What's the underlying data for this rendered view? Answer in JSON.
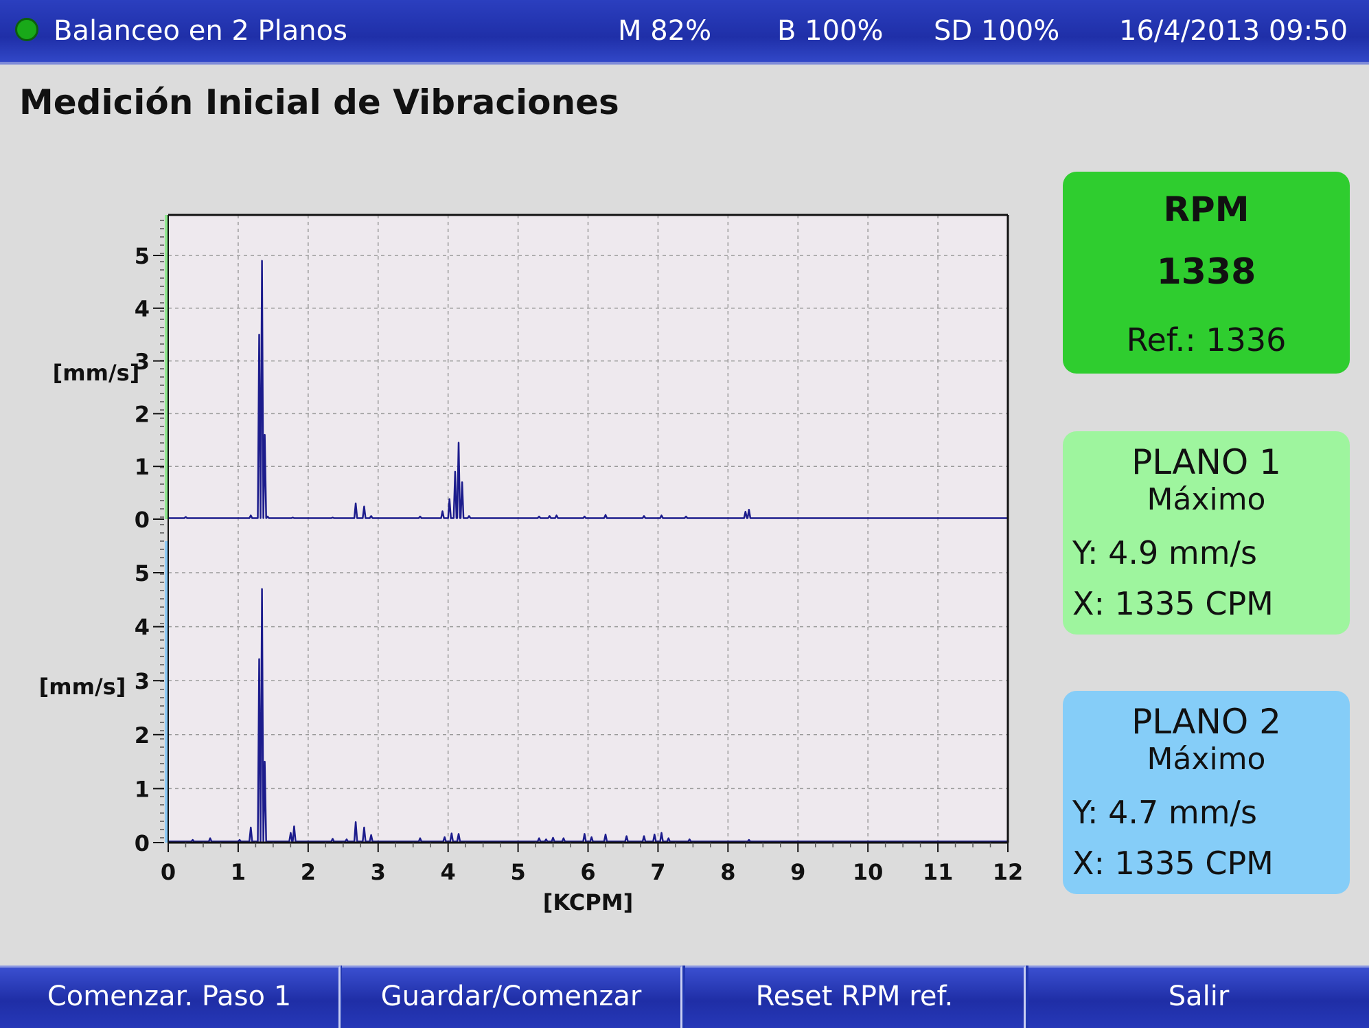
{
  "header": {
    "title": "Balanceo en 2 Planos",
    "memory": "M 82%",
    "battery": "B 100%",
    "sd": "SD 100%",
    "datetime": "16/4/2013 09:50",
    "status_color": "#19a919"
  },
  "page": {
    "title": "Medición Inicial de Vibraciones"
  },
  "rpm": {
    "label": "RPM",
    "value": "1338",
    "ref": "Ref.: 1336"
  },
  "plano1": {
    "title": "PLANO 1",
    "subtitle": "Máximo",
    "y": "Y: 4.9 mm/s",
    "x": "X: 1335 CPM",
    "color": "#9ef59e"
  },
  "plano2": {
    "title": "PLANO 2",
    "subtitle": "Máximo",
    "y": "Y: 4.7 mm/s",
    "x": "X: 1335 CPM",
    "color": "#85cdf8"
  },
  "buttons": {
    "start_step1": "Comenzar. Paso 1",
    "save_start": "Guardar/Comenzar",
    "reset_rpm": "Reset RPM ref.",
    "exit": "Salir"
  },
  "chart_data": {
    "type": "line",
    "xlabel": "[KCPM]",
    "x_ticks": [
      0,
      1,
      2,
      3,
      4,
      5,
      6,
      7,
      8,
      9,
      10,
      11,
      12
    ],
    "xlim": [
      0,
      12
    ],
    "grid": true,
    "line_color": "#1c1c8c",
    "panels": [
      {
        "ylabel": "[mm/s]",
        "y_ticks": [
          0,
          1,
          2,
          3,
          4,
          5
        ],
        "ylim": [
          0,
          5.7
        ],
        "axis_color": "#8fe88f",
        "baseline": 0.02,
        "peaks": [
          [
            0.25,
            0.04
          ],
          [
            1.18,
            0.07
          ],
          [
            1.3,
            3.5
          ],
          [
            1.34,
            4.9
          ],
          [
            1.38,
            1.6
          ],
          [
            1.42,
            0.05
          ],
          [
            1.78,
            0.03
          ],
          [
            2.35,
            0.03
          ],
          [
            2.68,
            0.3
          ],
          [
            2.8,
            0.24
          ],
          [
            2.9,
            0.06
          ],
          [
            3.6,
            0.05
          ],
          [
            3.92,
            0.15
          ],
          [
            4.02,
            0.38
          ],
          [
            4.1,
            0.9
          ],
          [
            4.15,
            1.45
          ],
          [
            4.2,
            0.7
          ],
          [
            4.3,
            0.06
          ],
          [
            5.3,
            0.05
          ],
          [
            5.45,
            0.06
          ],
          [
            5.55,
            0.07
          ],
          [
            5.95,
            0.05
          ],
          [
            6.25,
            0.08
          ],
          [
            6.8,
            0.06
          ],
          [
            7.05,
            0.07
          ],
          [
            7.4,
            0.05
          ],
          [
            8.25,
            0.14
          ],
          [
            8.3,
            0.18
          ]
        ]
      },
      {
        "ylabel": "[mm/s]",
        "y_ticks": [
          0,
          1,
          2,
          3,
          4,
          5
        ],
        "ylim": [
          0,
          5.5
        ],
        "axis_color": "#8ccaf5",
        "baseline": 0.02,
        "peaks": [
          [
            0.35,
            0.05
          ],
          [
            0.6,
            0.08
          ],
          [
            1.02,
            0.05
          ],
          [
            1.18,
            0.28
          ],
          [
            1.3,
            3.4
          ],
          [
            1.34,
            4.7
          ],
          [
            1.38,
            1.5
          ],
          [
            1.75,
            0.18
          ],
          [
            1.8,
            0.3
          ],
          [
            2.35,
            0.07
          ],
          [
            2.55,
            0.06
          ],
          [
            2.68,
            0.38
          ],
          [
            2.8,
            0.28
          ],
          [
            2.9,
            0.14
          ],
          [
            3.6,
            0.08
          ],
          [
            3.95,
            0.1
          ],
          [
            4.05,
            0.17
          ],
          [
            4.15,
            0.16
          ],
          [
            5.3,
            0.08
          ],
          [
            5.4,
            0.06
          ],
          [
            5.5,
            0.09
          ],
          [
            5.65,
            0.08
          ],
          [
            5.95,
            0.16
          ],
          [
            6.05,
            0.1
          ],
          [
            6.25,
            0.15
          ],
          [
            6.55,
            0.12
          ],
          [
            6.8,
            0.12
          ],
          [
            6.95,
            0.15
          ],
          [
            7.05,
            0.18
          ],
          [
            7.15,
            0.08
          ],
          [
            7.45,
            0.06
          ],
          [
            8.3,
            0.05
          ]
        ]
      }
    ]
  }
}
